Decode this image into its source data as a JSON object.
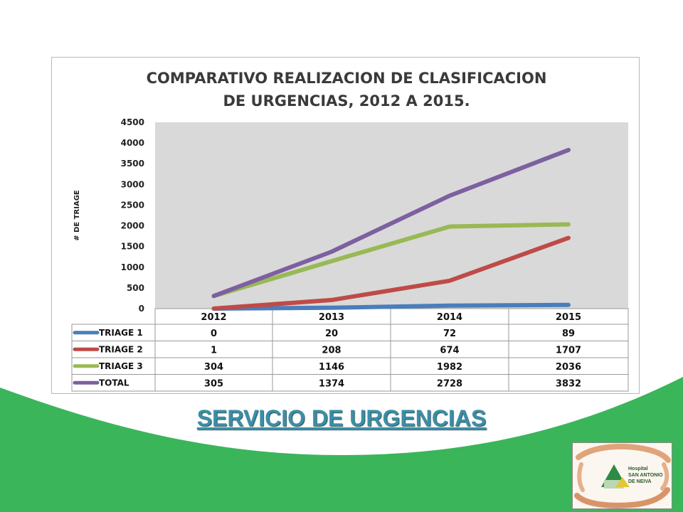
{
  "slide": {
    "footer_title": "SERVICIO DE URGENCIAS",
    "accent_color": "#3bb55a",
    "footer_color": "#3b8ea5"
  },
  "logo": {
    "text_lines": [
      "Hospital",
      "SAN ANTONIO",
      "DE NEIVA"
    ],
    "icon": "hands-and-house-logo"
  },
  "chart_data": {
    "type": "line",
    "title": [
      "COMPARATIVO  REALIZACION DE CLASIFICACION",
      "DE URGENCIAS, 2012 A 2015."
    ],
    "ylabel": "# DE TRIAGE",
    "xlabel": "",
    "categories": [
      "2012",
      "2013",
      "2014",
      "2015"
    ],
    "ylim": [
      0,
      4500
    ],
    "yticks": [
      "0",
      "500",
      "1000",
      "1500",
      "2000",
      "2500",
      "3000",
      "3500",
      "4000",
      "4500"
    ],
    "grid": false,
    "legend": "data-table",
    "series": [
      {
        "name": "TRIAGE 1",
        "values": [
          0,
          20,
          72,
          89
        ],
        "color": "#4a7ebb"
      },
      {
        "name": "TRIAGE 2",
        "values": [
          1,
          208,
          674,
          1707
        ],
        "color": "#be4b48"
      },
      {
        "name": "TRIAGE 3",
        "values": [
          304,
          1146,
          1982,
          2036
        ],
        "color": "#98b954"
      },
      {
        "name": "TOTAL",
        "values": [
          305,
          1374,
          2728,
          3832
        ],
        "color": "#7d60a0"
      }
    ]
  }
}
